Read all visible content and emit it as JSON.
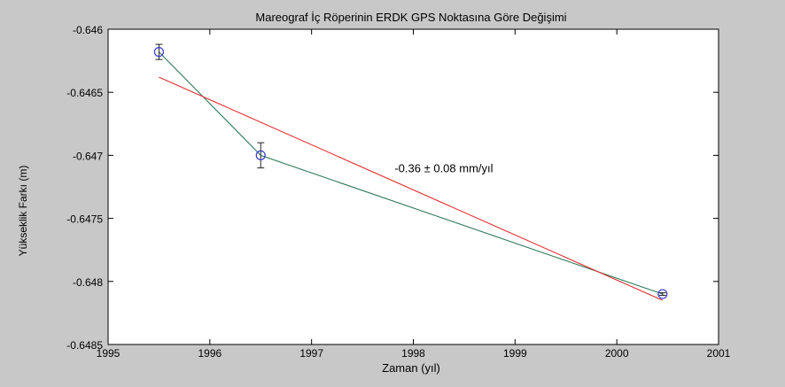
{
  "chart_data": {
    "type": "line",
    "title": "Mareograf İç Röperinin ERDK GPS Noktasına Göre Değişimi",
    "xlabel": "Zaman (yıl)",
    "ylabel": "Yükseklik Farkı (m)",
    "xlim": [
      1995,
      2001
    ],
    "ylim": [
      -0.6485,
      -0.646
    ],
    "x_ticks": [
      1995,
      1996,
      1997,
      1998,
      1999,
      2000,
      2001
    ],
    "x_tick_labels": [
      "1995",
      "1996",
      "1997",
      "1998",
      "1999",
      "2000",
      "2001"
    ],
    "y_ticks": [
      -0.646,
      -0.6465,
      -0.647,
      -0.6475,
      -0.648,
      -0.6485
    ],
    "y_tick_labels": [
      "-0.646",
      "-0.6465",
      "-0.647",
      "-0.6475",
      "-0.648",
      "-0.6485"
    ],
    "grid": false,
    "series": [
      {
        "style": "markers-with-errorbars",
        "color": "#3a3ad0",
        "points": [
          {
            "x": 1995.5,
            "y": -0.64618,
            "err": 6e-05
          },
          {
            "x": 1996.5,
            "y": -0.647,
            "err": 0.0001
          },
          {
            "x": 2000.45,
            "y": -0.6481,
            "err": 1e-05
          }
        ]
      },
      {
        "style": "line",
        "color": "#2e7a5a",
        "points": [
          {
            "x": 1995.5,
            "y": -0.64618
          },
          {
            "x": 1996.5,
            "y": -0.647
          },
          {
            "x": 2000.45,
            "y": -0.6481
          }
        ]
      },
      {
        "style": "trend-line",
        "color": "#e03030",
        "points": [
          {
            "x": 1995.5,
            "y": -0.64638
          },
          {
            "x": 2000.45,
            "y": -0.64815
          }
        ]
      }
    ],
    "annotations": [
      {
        "text": "-0.36 ± 0.08 mm/yıl",
        "x": 1998.3,
        "y": -0.6471
      }
    ]
  }
}
